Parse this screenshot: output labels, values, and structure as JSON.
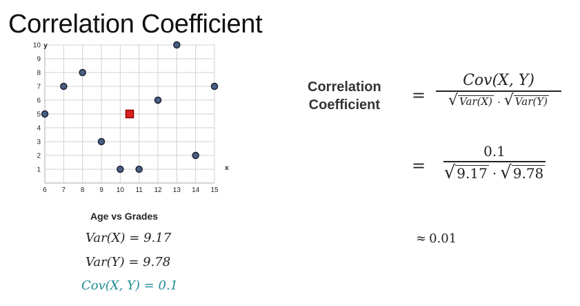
{
  "slide": {
    "title": "Correlation Coefficient"
  },
  "chart_data": {
    "type": "scatter",
    "title": "Age vs Grades",
    "xlabel": "x",
    "ylabel": "y",
    "xlim": [
      6,
      15
    ],
    "ylim": [
      0,
      10
    ],
    "x_ticks": [
      6,
      7,
      8,
      9,
      10,
      11,
      12,
      13,
      14,
      15
    ],
    "y_ticks": [
      1,
      2,
      3,
      4,
      5,
      6,
      7,
      8,
      9,
      10
    ],
    "grid": true,
    "points": [
      {
        "x": 6,
        "y": 5
      },
      {
        "x": 7,
        "y": 7
      },
      {
        "x": 8,
        "y": 8
      },
      {
        "x": 9,
        "y": 3
      },
      {
        "x": 10,
        "y": 1
      },
      {
        "x": 11,
        "y": 1
      },
      {
        "x": 12,
        "y": 6
      },
      {
        "x": 13,
        "y": 10
      },
      {
        "x": 14,
        "y": 2
      },
      {
        "x": 15,
        "y": 7
      }
    ],
    "mean_point": {
      "x": 10.5,
      "y": 5
    },
    "colors": {
      "point_fill": "#4a5f82",
      "point_stroke": "#1a2233",
      "mean_fill": "#e02020",
      "mean_stroke": "#8a0000",
      "grid": "#d0d0d0",
      "axis": "#bbbbbb"
    }
  },
  "stats": {
    "var_x": "Var(X) = 9.17",
    "var_y": "Var(Y) = 9.78",
    "cov_xy": "Cov(X, Y) = 0.1",
    "cov_color": "#1f8a94"
  },
  "formula": {
    "label_line1": "Correlation",
    "label_line2": "Coefficient",
    "equals": "=",
    "numerator_symbolic": "Cov(X, Y)",
    "denominator_var_x": "Var(X)",
    "denominator_var_y": "Var(Y)",
    "dot": "·",
    "radical": "√",
    "numerator_value": "0.1",
    "denominator_value_x": "9.17",
    "denominator_value_y": "9.78",
    "approx_symbol": "≈",
    "approx_value": "0.01"
  }
}
